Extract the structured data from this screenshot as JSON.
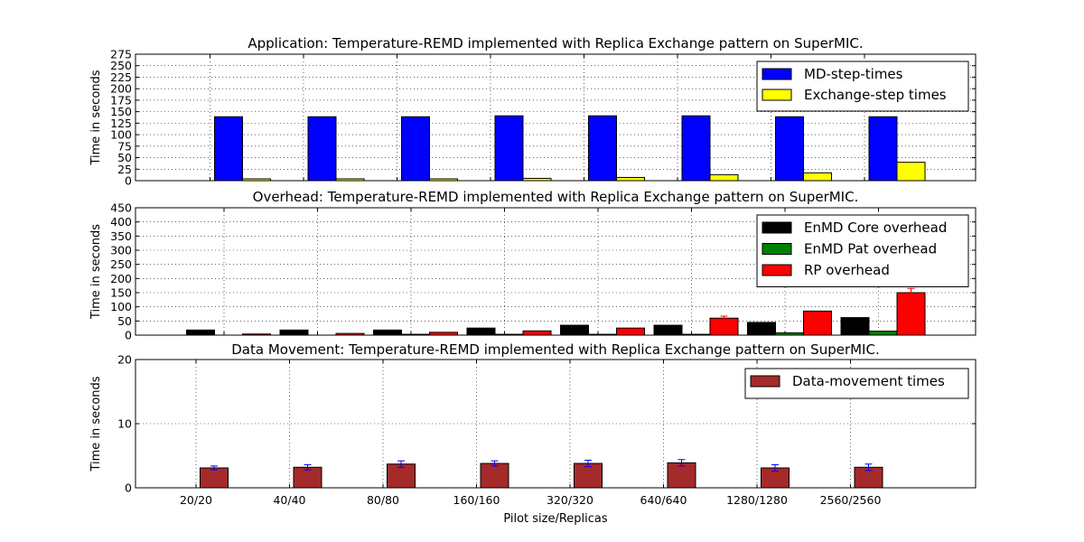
{
  "chart_data": [
    {
      "type": "bar",
      "title": "Application: Temperature-REMD implemented with Replica Exchange pattern on SuperMIC.",
      "ylabel": "Time in seconds",
      "xlabel": "",
      "categories": [
        "20/20",
        "40/40",
        "80/80",
        "160/160",
        "320/320",
        "640/640",
        "1280/1280",
        "2560/2560"
      ],
      "ylim": [
        0,
        275
      ],
      "yticks": [
        0,
        25,
        50,
        75,
        100,
        125,
        150,
        175,
        200,
        225,
        250,
        275
      ],
      "grid": true,
      "legend_position": "top-right",
      "series": [
        {
          "name": "MD-step-times",
          "color": "#0000ff",
          "values": [
            139,
            139,
            139,
            141,
            141,
            141,
            139,
            139
          ]
        },
        {
          "name": "Exchange-step times",
          "color": "#ffff00",
          "values": [
            4,
            4,
            4,
            5,
            7,
            13,
            17,
            40
          ]
        }
      ]
    },
    {
      "type": "bar",
      "title": "Overhead: Temperature-REMD implemented with Replica Exchange pattern on SuperMIC.",
      "ylabel": "Time in seconds",
      "xlabel": "",
      "categories": [
        "20/20",
        "40/40",
        "80/80",
        "160/160",
        "320/320",
        "640/640",
        "1280/1280",
        "2560/2560"
      ],
      "ylim": [
        0,
        450
      ],
      "yticks": [
        0,
        50,
        100,
        150,
        200,
        250,
        300,
        350,
        400,
        450
      ],
      "grid": true,
      "legend_position": "top-right",
      "series": [
        {
          "name": "EnMD Core overhead",
          "color": "#000000",
          "values": [
            18,
            18,
            18,
            25,
            35,
            35,
            45,
            62
          ]
        },
        {
          "name": "EnMD Pat overhead",
          "color": "#008000",
          "values": [
            0,
            0,
            3,
            3,
            3,
            3,
            8,
            14
          ]
        },
        {
          "name": "RP overhead",
          "color": "#ff0000",
          "values": [
            4,
            6,
            10,
            15,
            25,
            60,
            85,
            150
          ],
          "errors": [
            0,
            0,
            0,
            0,
            0,
            7,
            0,
            15
          ]
        }
      ]
    },
    {
      "type": "bar",
      "title": "Data Movement: Temperature-REMD implemented with Replica Exchange pattern on SuperMIC.",
      "ylabel": "Time in seconds",
      "xlabel": "Pilot size/Replicas",
      "categories": [
        "20/20",
        "40/40",
        "80/80",
        "160/160",
        "320/320",
        "640/640",
        "1280/1280",
        "2560/2560"
      ],
      "ylim": [
        0,
        20
      ],
      "yticks": [
        0,
        10,
        20
      ],
      "grid": true,
      "legend_position": "top-right",
      "series": [
        {
          "name": "Data-movement times",
          "color": "#a52a2a",
          "values": [
            3.1,
            3.2,
            3.7,
            3.8,
            3.8,
            3.9,
            3.1,
            3.2
          ],
          "errors": [
            0.3,
            0.4,
            0.5,
            0.4,
            0.5,
            0.5,
            0.5,
            0.5
          ]
        }
      ]
    }
  ]
}
